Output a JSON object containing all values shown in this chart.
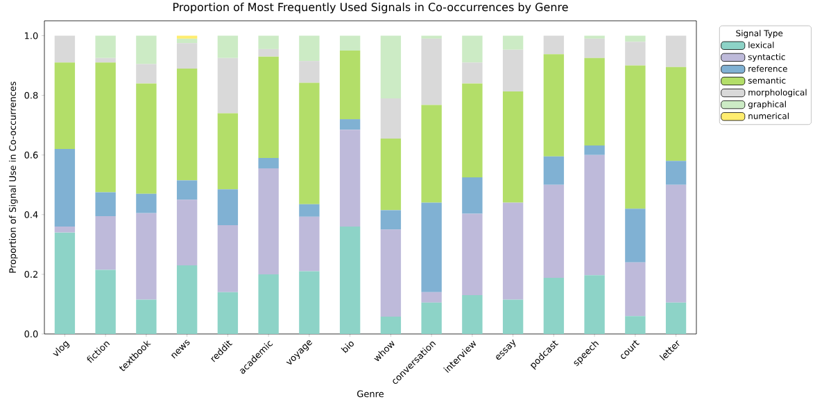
{
  "chart_data": {
    "type": "bar",
    "stacked": true,
    "title": "Proportion of Most Frequently Used Signals in Co-occurrences by Genre",
    "xlabel": "Genre",
    "ylabel": "Proportion of Signal Use in Co-occurrences",
    "legend_title": "Signal Type",
    "legend": "right",
    "grid": false,
    "categories": [
      "vlog",
      "fiction",
      "textbook",
      "news",
      "reddit",
      "academic",
      "voyage",
      "bio",
      "whow",
      "conversation",
      "interview",
      "essay",
      "podcast",
      "speech",
      "court",
      "letter"
    ],
    "ylim": [
      0,
      1.05
    ],
    "yticks": [
      {
        "value": 0,
        "label": "0.0"
      },
      {
        "value": 0.2,
        "label": "0.2"
      },
      {
        "value": 0.4,
        "label": "0.4"
      },
      {
        "value": 0.6,
        "label": "0.6"
      },
      {
        "value": 0.8,
        "label": "0.8"
      },
      {
        "value": 1.0,
        "label": "1.0"
      }
    ],
    "series": [
      {
        "name": "lexical",
        "color": "#8dd3c7",
        "values": [
          0.34,
          0.215,
          0.115,
          0.23,
          0.14,
          0.2,
          0.21,
          0.36,
          0.058,
          0.105,
          0.13,
          0.115,
          0.188,
          0.197,
          0.06,
          0.105
        ]
      },
      {
        "name": "syntactic",
        "color": "#bebada",
        "values": [
          0.02,
          0.18,
          0.29,
          0.22,
          0.225,
          0.355,
          0.183,
          0.325,
          0.292,
          0.035,
          0.273,
          0.325,
          0.312,
          0.403,
          0.18,
          0.395
        ]
      },
      {
        "name": "reference",
        "color": "#80b1d3",
        "values": [
          0.26,
          0.08,
          0.065,
          0.065,
          0.12,
          0.035,
          0.042,
          0.035,
          0.065,
          0.3,
          0.122,
          0,
          0.095,
          0.032,
          0.18,
          0.08
        ]
      },
      {
        "name": "semantic",
        "color": "#b3de69",
        "values": [
          0.29,
          0.435,
          0.37,
          0.375,
          0.255,
          0.34,
          0.407,
          0.23,
          0.24,
          0.328,
          0.315,
          0.373,
          0.343,
          0.293,
          0.48,
          0.315
        ]
      },
      {
        "name": "morphological",
        "color": "#d9d9d9",
        "values": [
          0.09,
          0.015,
          0.065,
          0.085,
          0.185,
          0.025,
          0.073,
          0,
          0.135,
          0.222,
          0.07,
          0.14,
          0.062,
          0.065,
          0.08,
          0.105
        ]
      },
      {
        "name": "graphical",
        "color": "#ccebc5",
        "values": [
          0,
          0.075,
          0.095,
          0.015,
          0.075,
          0.045,
          0.085,
          0.05,
          0.21,
          0.01,
          0.09,
          0.047,
          0,
          0.01,
          0.02,
          0
        ]
      },
      {
        "name": "numerical",
        "color": "#ffed6f",
        "values": [
          0,
          0,
          0,
          0.01,
          0,
          0,
          0,
          0,
          0,
          0,
          0,
          0,
          0,
          0,
          0,
          0
        ]
      }
    ]
  }
}
